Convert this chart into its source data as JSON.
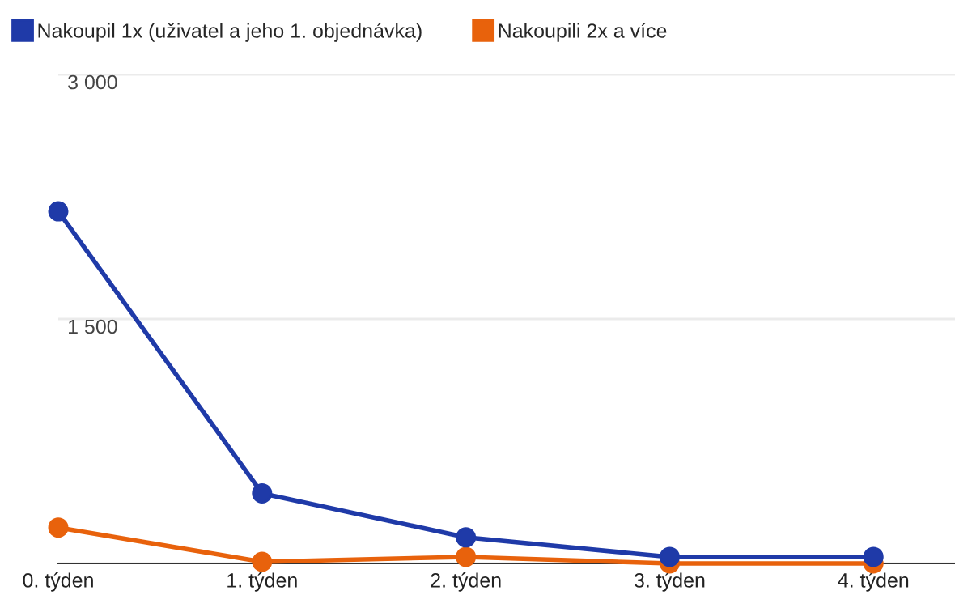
{
  "chart_data": {
    "type": "line",
    "categories": [
      "0. týden",
      "1. týden",
      "2. týden",
      "3. týden",
      "4. týden"
    ],
    "series": [
      {
        "name": "Nakoupil 1x (uživatel a jeho 1. objednávka)",
        "color": "#1f3aa8",
        "values": [
          2160,
          430,
          160,
          40,
          40
        ]
      },
      {
        "name": "Nakoupili 2x a více",
        "color": "#e8620c",
        "values": [
          220,
          10,
          40,
          0,
          0
        ]
      }
    ],
    "ylim": [
      0,
      3000
    ],
    "yticks": [
      {
        "value": 0,
        "label": null
      },
      {
        "value": 1500,
        "label": "1 500"
      },
      {
        "value": 3000,
        "label": "3 000"
      }
    ],
    "grid": "y",
    "legend": "top left",
    "marker": "circle",
    "line_style": "solid"
  }
}
